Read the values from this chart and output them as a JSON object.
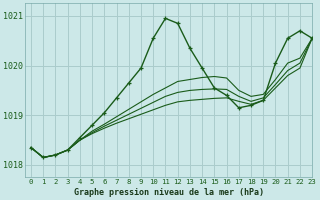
{
  "title": "Graphe pression niveau de la mer (hPa)",
  "background_color": "#cce8e8",
  "grid_color": "#aacccc",
  "line_color": "#1a5c1a",
  "xlim": [
    -0.5,
    23
  ],
  "ylim": [
    1017.75,
    1021.25
  ],
  "yticks": [
    1018,
    1019,
    1020,
    1021
  ],
  "xticks": [
    0,
    1,
    2,
    3,
    4,
    5,
    6,
    7,
    8,
    9,
    10,
    11,
    12,
    13,
    14,
    15,
    16,
    17,
    18,
    19,
    20,
    21,
    22,
    23
  ],
  "series_main": [
    1018.35,
    1018.15,
    1018.2,
    1018.3,
    1018.55,
    1018.8,
    1019.05,
    1019.35,
    1019.65,
    1019.95,
    1020.55,
    1020.95,
    1020.85,
    1020.35,
    1019.95,
    1019.55,
    1019.4,
    1019.15,
    1019.2,
    1019.3,
    1020.05,
    1020.55,
    1020.7,
    1020.55
  ],
  "series_others": [
    [
      1018.35,
      1018.15,
      1018.2,
      1018.3,
      1018.5,
      1018.68,
      1018.82,
      1018.97,
      1019.12,
      1019.27,
      1019.42,
      1019.55,
      1019.68,
      1019.72,
      1019.76,
      1019.78,
      1019.75,
      1019.5,
      1019.38,
      1019.42,
      1019.72,
      1020.05,
      1020.15,
      1020.55
    ],
    [
      1018.35,
      1018.15,
      1018.2,
      1018.3,
      1018.5,
      1018.65,
      1018.78,
      1018.9,
      1019.02,
      1019.14,
      1019.26,
      1019.38,
      1019.46,
      1019.5,
      1019.52,
      1019.53,
      1019.52,
      1019.38,
      1019.28,
      1019.35,
      1019.62,
      1019.9,
      1020.05,
      1020.55
    ],
    [
      1018.35,
      1018.15,
      1018.2,
      1018.3,
      1018.5,
      1018.63,
      1018.74,
      1018.84,
      1018.93,
      1019.02,
      1019.11,
      1019.2,
      1019.27,
      1019.3,
      1019.32,
      1019.34,
      1019.35,
      1019.28,
      1019.22,
      1019.3,
      1019.55,
      1019.8,
      1019.95,
      1020.55
    ]
  ]
}
